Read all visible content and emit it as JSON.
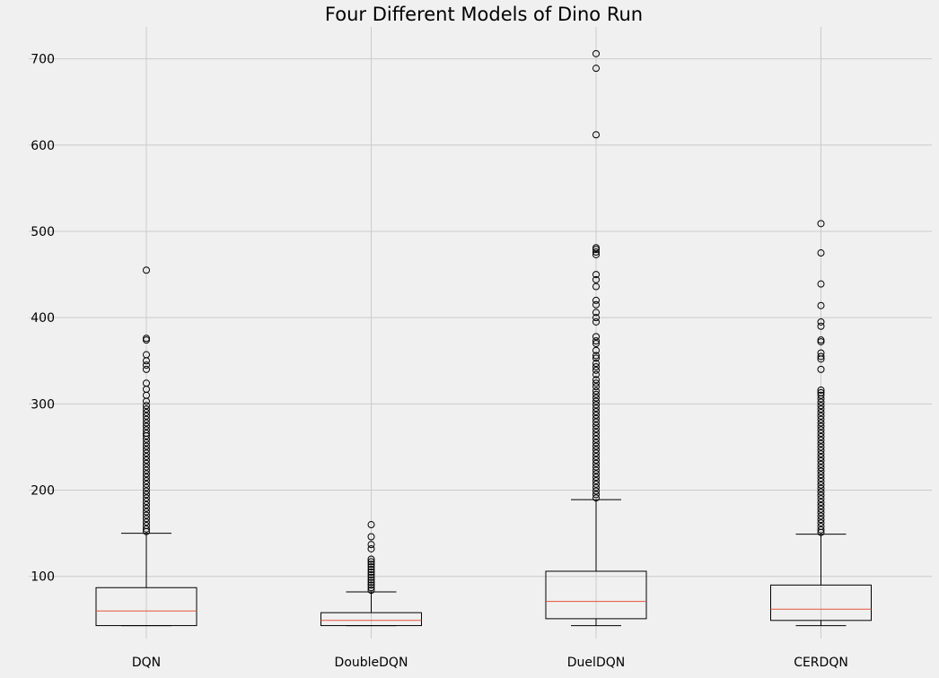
{
  "chart_data": {
    "type": "box",
    "title": "Four Different Models of Dino Run",
    "xlabel": "",
    "ylabel": "",
    "ylim": [
      28,
      737
    ],
    "yticks": [
      100,
      200,
      300,
      400,
      500,
      600,
      700
    ],
    "grid": true,
    "categories": [
      "DQN",
      "DoubleDQN",
      "DuelDQN",
      "CERDQN"
    ],
    "boxes": [
      {
        "label": "DQN",
        "whisker_low": 43,
        "q1": 43,
        "median": 60,
        "q3": 87,
        "whisker_high": 150,
        "outliers": [
          455,
          376,
          374,
          357,
          350,
          345,
          340,
          324,
          317,
          310,
          303,
          298,
          294,
          290,
          286,
          282,
          278,
          274,
          270,
          266,
          263,
          259,
          255,
          251,
          247,
          243,
          239,
          235,
          231,
          227,
          223,
          219,
          215,
          211,
          207,
          203,
          199,
          195,
          191,
          187,
          183,
          179,
          175,
          171,
          167,
          163,
          159,
          155,
          152
        ]
      },
      {
        "label": "DoubleDQN",
        "whisker_low": 43,
        "q1": 43,
        "median": 49,
        "q3": 58,
        "whisker_high": 82,
        "outliers": [
          160,
          146,
          137,
          132,
          120,
          117,
          114,
          111,
          108,
          105,
          102,
          99,
          96,
          93,
          90,
          87,
          84
        ]
      },
      {
        "label": "DuelDQN",
        "whisker_low": 43,
        "q1": 51,
        "median": 71,
        "q3": 106,
        "whisker_high": 189,
        "outliers": [
          706,
          689,
          612,
          481,
          479,
          476,
          473,
          450,
          444,
          436,
          420,
          415,
          406,
          400,
          395,
          378,
          373,
          370,
          362,
          356,
          353,
          347,
          343,
          339,
          334,
          328,
          324,
          320,
          315,
          311,
          307,
          303,
          299,
          295,
          291,
          287,
          283,
          279,
          275,
          271,
          267,
          263,
          259,
          255,
          251,
          247,
          243,
          239,
          235,
          231,
          227,
          223,
          219,
          215,
          211,
          207,
          203,
          199,
          195,
          191
        ]
      },
      {
        "label": "CERDQN",
        "whisker_low": 43,
        "q1": 49,
        "median": 62,
        "q3": 90,
        "whisker_high": 149,
        "outliers": [
          509,
          475,
          439,
          414,
          395,
          390,
          374,
          372,
          359,
          355,
          352,
          340,
          316,
          313,
          310,
          306,
          302,
          298,
          294,
          290,
          286,
          282,
          278,
          274,
          270,
          266,
          262,
          258,
          254,
          250,
          246,
          242,
          238,
          234,
          230,
          226,
          222,
          218,
          214,
          210,
          206,
          202,
          198,
          194,
          190,
          186,
          182,
          178,
          174,
          170,
          166,
          162,
          158,
          154,
          151
        ]
      }
    ],
    "colors": {
      "background": "#f0f0f0",
      "grid": "#cbcbcb",
      "box": "#000000",
      "median": "#e5533b"
    }
  }
}
